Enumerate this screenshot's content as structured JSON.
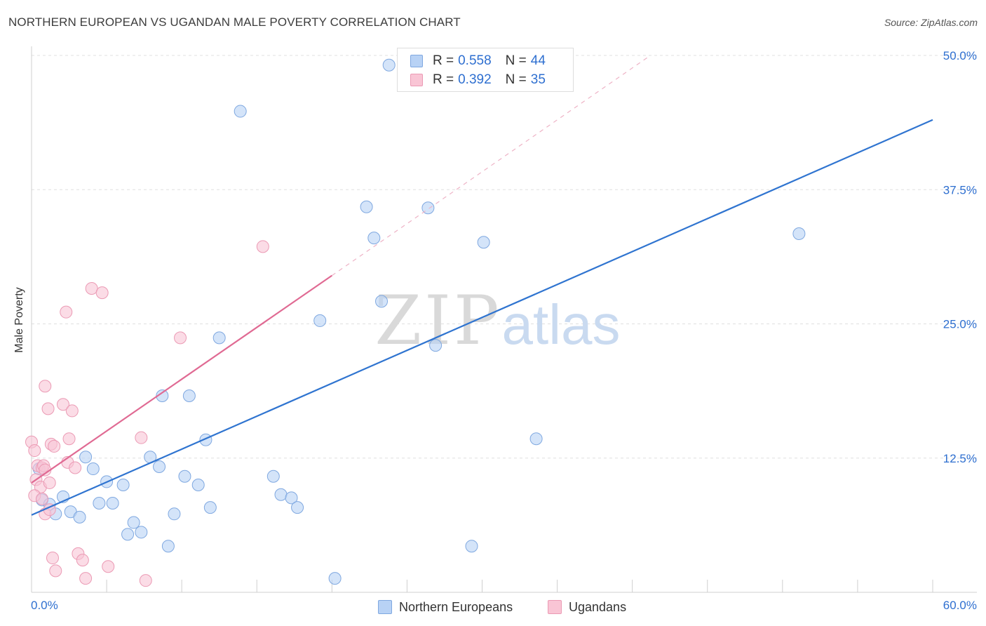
{
  "title": "NORTHERN EUROPEAN VS UGANDAN MALE POVERTY CORRELATION CHART",
  "source": "Source: ZipAtlas.com",
  "watermark": {
    "zip": "ZIP",
    "atlas": "atlas"
  },
  "legend": {
    "r_label": "R =",
    "n_label": "N =",
    "series": [
      {
        "name": "Northern Europeans",
        "r": "0.558",
        "n": "44"
      },
      {
        "name": "Ugandans",
        "r": "0.392",
        "n": "35"
      }
    ]
  },
  "colors": {
    "blue_fill": "#b8d2f5",
    "blue_stroke": "#7fa8e0",
    "blue_line": "#2f74d0",
    "pink_fill": "#f9c5d5",
    "pink_stroke": "#eb9ab4",
    "pink_line": "#e06a93",
    "accent_text": "#2e6fd0",
    "grid": "#e0e0e0"
  },
  "chart_data": {
    "type": "scatter",
    "title": "NORTHERN EUROPEAN VS UGANDAN MALE POVERTY CORRELATION CHART",
    "xlabel": "",
    "ylabel": "Male Poverty",
    "xlim": [
      0,
      60
    ],
    "ylim": [
      0,
      50
    ],
    "x_tick_labels": [
      "0.0%",
      "60.0%"
    ],
    "y_ticks": [
      12.5,
      25.0,
      37.5,
      50.0
    ],
    "y_tick_labels": [
      "12.5%",
      "25.0%",
      "37.5%",
      "50.0%"
    ],
    "grid": true,
    "legend_position": "top-center",
    "series": [
      {
        "name": "Northern Europeans",
        "r": 0.558,
        "n": 44,
        "trend": {
          "x": [
            0,
            60
          ],
          "y": [
            7.2,
            44.0
          ]
        },
        "points": [
          [
            23.8,
            49.1
          ],
          [
            13.9,
            44.8
          ],
          [
            22.3,
            35.9
          ],
          [
            26.4,
            35.8
          ],
          [
            22.8,
            33.0
          ],
          [
            30.1,
            32.6
          ],
          [
            51.1,
            33.4
          ],
          [
            23.3,
            27.1
          ],
          [
            19.2,
            25.3
          ],
          [
            12.5,
            23.7
          ],
          [
            26.9,
            23.0
          ],
          [
            8.7,
            18.3
          ],
          [
            10.5,
            18.3
          ],
          [
            33.6,
            14.3
          ],
          [
            11.6,
            14.2
          ],
          [
            3.6,
            12.6
          ],
          [
            7.9,
            12.6
          ],
          [
            0.5,
            11.5
          ],
          [
            4.1,
            11.5
          ],
          [
            8.5,
            11.7
          ],
          [
            10.2,
            10.8
          ],
          [
            16.1,
            10.8
          ],
          [
            5.0,
            10.3
          ],
          [
            6.1,
            10.0
          ],
          [
            11.1,
            10.0
          ],
          [
            16.6,
            9.1
          ],
          [
            17.3,
            8.8
          ],
          [
            2.1,
            8.9
          ],
          [
            0.7,
            8.6
          ],
          [
            1.2,
            8.2
          ],
          [
            4.5,
            8.3
          ],
          [
            5.4,
            8.3
          ],
          [
            11.9,
            7.9
          ],
          [
            17.7,
            7.9
          ],
          [
            2.6,
            7.5
          ],
          [
            1.6,
            7.3
          ],
          [
            9.5,
            7.3
          ],
          [
            3.2,
            7.0
          ],
          [
            6.8,
            6.5
          ],
          [
            7.3,
            5.6
          ],
          [
            6.4,
            5.4
          ],
          [
            9.1,
            4.3
          ],
          [
            29.3,
            4.3
          ],
          [
            20.2,
            1.3
          ]
        ]
      },
      {
        "name": "Ugandans",
        "r": 0.392,
        "n": 35,
        "trend": {
          "x": [
            0,
            20
          ],
          "y": [
            10.2,
            29.5
          ]
        },
        "trend_extension": {
          "x": [
            20,
            41
          ],
          "y": [
            29.5,
            49.8
          ]
        },
        "points": [
          [
            15.4,
            32.2
          ],
          [
            4.0,
            28.3
          ],
          [
            4.7,
            27.9
          ],
          [
            2.3,
            26.1
          ],
          [
            9.9,
            23.7
          ],
          [
            0.9,
            19.2
          ],
          [
            2.1,
            17.5
          ],
          [
            1.1,
            17.1
          ],
          [
            2.7,
            16.9
          ],
          [
            0.0,
            14.0
          ],
          [
            2.5,
            14.3
          ],
          [
            7.3,
            14.4
          ],
          [
            1.3,
            13.8
          ],
          [
            1.5,
            13.6
          ],
          [
            0.2,
            13.2
          ],
          [
            2.4,
            12.1
          ],
          [
            2.9,
            11.6
          ],
          [
            0.4,
            11.8
          ],
          [
            0.7,
            11.6
          ],
          [
            0.8,
            11.8
          ],
          [
            0.9,
            11.4
          ],
          [
            0.3,
            10.5
          ],
          [
            0.6,
            9.8
          ],
          [
            1.2,
            10.2
          ],
          [
            0.2,
            9.0
          ],
          [
            0.7,
            8.7
          ],
          [
            0.9,
            7.3
          ],
          [
            1.2,
            7.7
          ],
          [
            3.1,
            3.6
          ],
          [
            1.4,
            3.2
          ],
          [
            3.4,
            3.0
          ],
          [
            5.1,
            2.4
          ],
          [
            1.6,
            2.0
          ],
          [
            3.6,
            1.3
          ],
          [
            7.6,
            1.1
          ]
        ]
      }
    ]
  }
}
